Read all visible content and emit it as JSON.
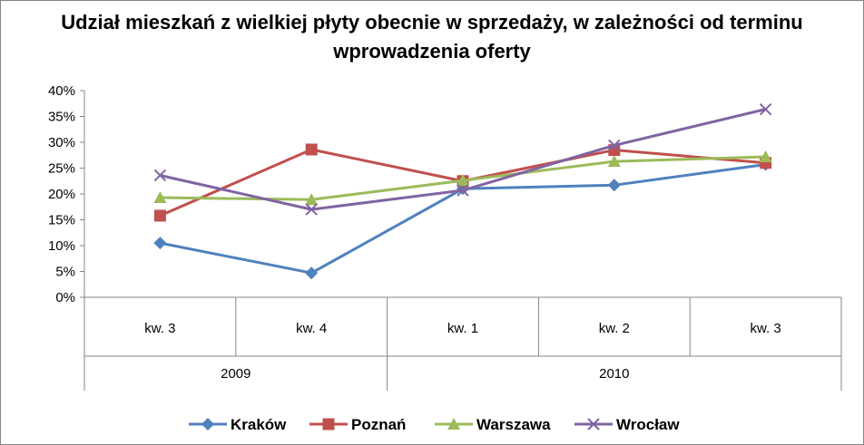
{
  "chart_data": {
    "type": "line",
    "title_lines": [
      "Udział mieszkań z wielkiej płyty obecnie w sprzedaży, w zależności od terminu",
      "wprowadzenia oferty"
    ],
    "categories": [
      "kw. 3",
      "kw. 4",
      "kw. 1",
      "kw. 2",
      "kw. 3"
    ],
    "groups": [
      {
        "label": "2009",
        "span": 2
      },
      {
        "label": "2010",
        "span": 3
      }
    ],
    "y_ticks": [
      "0%",
      "5%",
      "10%",
      "15%",
      "20%",
      "25%",
      "30%",
      "35%",
      "40%"
    ],
    "ylim": [
      0,
      40
    ],
    "grid": false,
    "legend_position": "bottom",
    "series": [
      {
        "name": "Kraków",
        "color": "#4F81BD",
        "marker": "diamond",
        "values": [
          10.5,
          4.7,
          21.0,
          21.7,
          25.7
        ]
      },
      {
        "name": "Poznań",
        "color": "#C0504D",
        "marker": "square",
        "values": [
          15.8,
          28.6,
          22.5,
          28.5,
          26.0
        ]
      },
      {
        "name": "Warszawa",
        "color": "#9BBB59",
        "marker": "triangle",
        "values": [
          19.3,
          18.9,
          22.6,
          26.3,
          27.2
        ]
      },
      {
        "name": "Wrocław",
        "color": "#8064A2",
        "marker": "x",
        "values": [
          23.6,
          17.0,
          20.7,
          29.4,
          36.4
        ]
      }
    ]
  }
}
